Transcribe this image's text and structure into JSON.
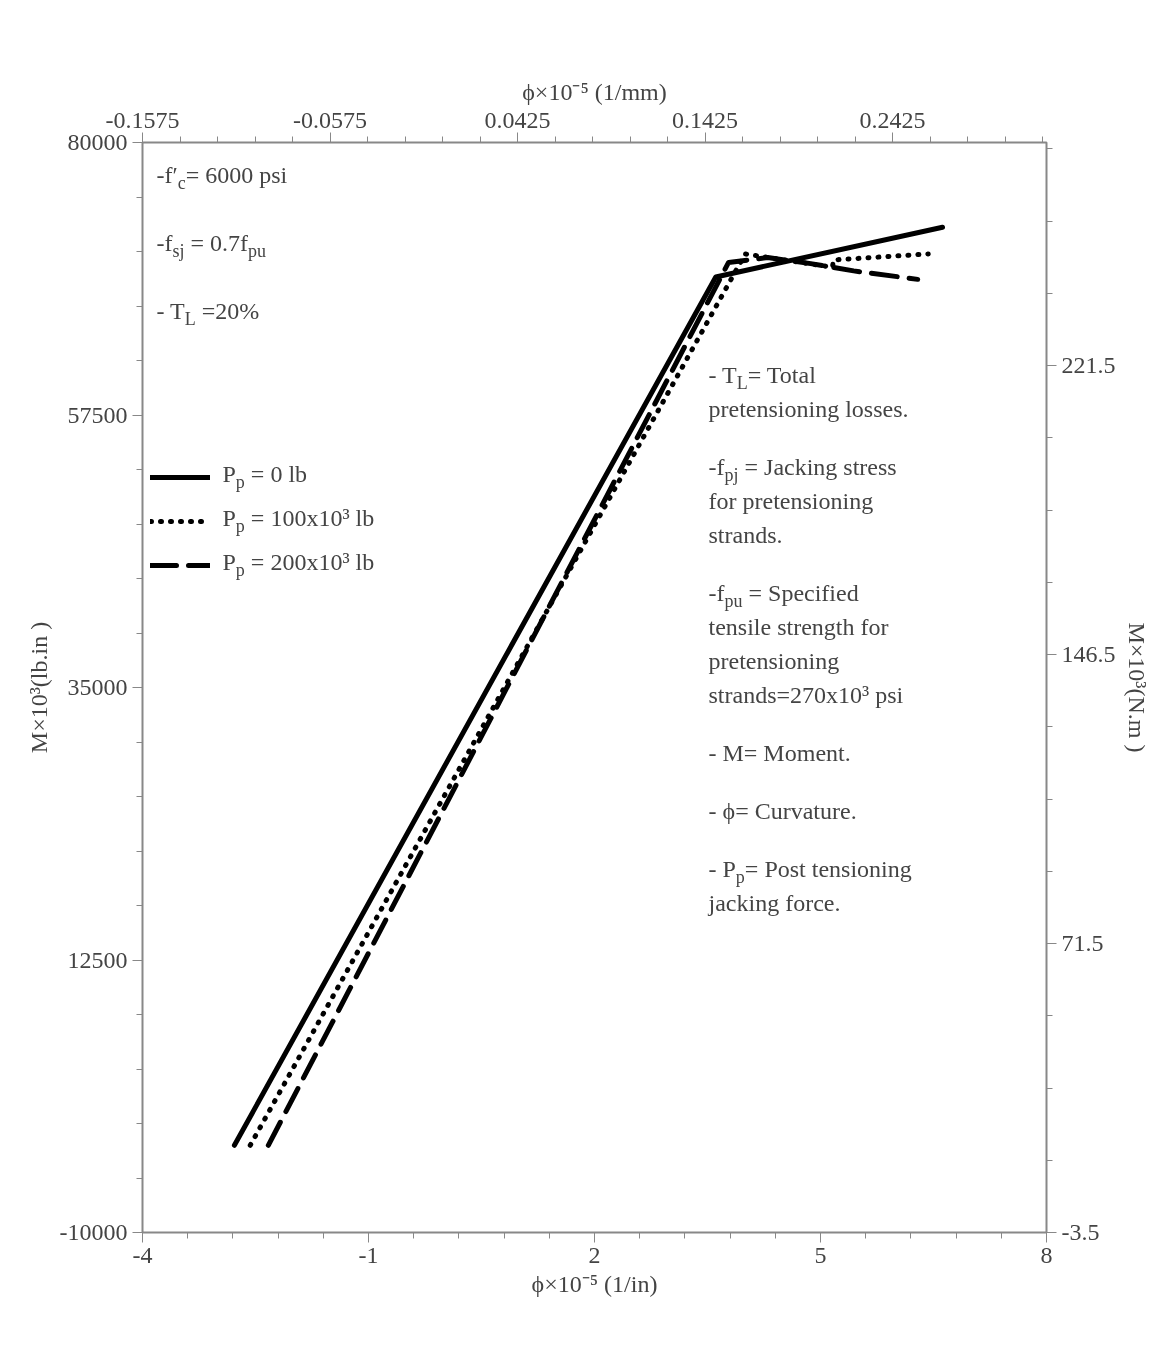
{
  "chart_data": {
    "type": "line",
    "xlabel": "ϕ×10⁻⁵ (1/in)",
    "x2label": "ϕ×10⁻⁵ (1/mm)",
    "ylabel": "M×10³(lb.in )",
    "y2label": "M×10³(N.m )",
    "xlim": [
      -4,
      8
    ],
    "xticks": [
      -4,
      -1,
      2,
      5,
      8
    ],
    "x2lim": [
      -0.1575,
      0.3246
    ],
    "x2ticks": [
      -0.1575,
      -0.0575,
      0.0425,
      0.1425,
      0.2425
    ],
    "ylim": [
      -10000,
      80000
    ],
    "yticks": [
      -10000,
      12500,
      35000,
      57500,
      80000
    ],
    "y2lim": [
      -3.5,
      279.4
    ],
    "y2ticks": [
      -3.5,
      71.5,
      146.5,
      221.5
    ],
    "grid": false,
    "legend": "left",
    "marker": "none",
    "series": [
      {
        "name": "P$_{p}$ = 0 lb",
        "color": "#000000",
        "line_style": "solid",
        "x": [
          -2.78,
          3.61,
          6.62
        ],
        "values": [
          -2800,
          68900,
          73000
        ]
      },
      {
        "name": "P$_{p}$ = 100x10³ lb",
        "color": "#000000",
        "line_style": "dotted",
        "x": [
          -2.57,
          4.0,
          5.16,
          5.17,
          6.43
        ],
        "values": [
          -2800,
          70800,
          69700,
          70300,
          70800
        ]
      },
      {
        "name": "P$_{p}$ = 200x10³ lb",
        "color": "#000000",
        "line_style": "dashed",
        "x": [
          -2.33,
          3.78,
          4.3,
          4.87,
          5.44,
          6.29
        ],
        "values": [
          -2800,
          70100,
          70500,
          70000,
          69400,
          68700
        ]
      }
    ],
    "annotations": [
      "-f′$_{c}$= 6000 psi",
      "-f$_{sj}$ = 0.7f$_{pu}$",
      "- T$_{L}$ =20%",
      "- T$_{L}$= Total pretensioning losses.",
      "-f$_{pj}$ = Jacking stress for pretensioning strands.",
      "-f$_{pu}$ = Specified tensile strength for pretensioning strands=270x10³ psi",
      "- M= Moment.",
      "- ϕ= Curvature.",
      "- P$_{p}$= Post tensioning jacking force."
    ]
  }
}
